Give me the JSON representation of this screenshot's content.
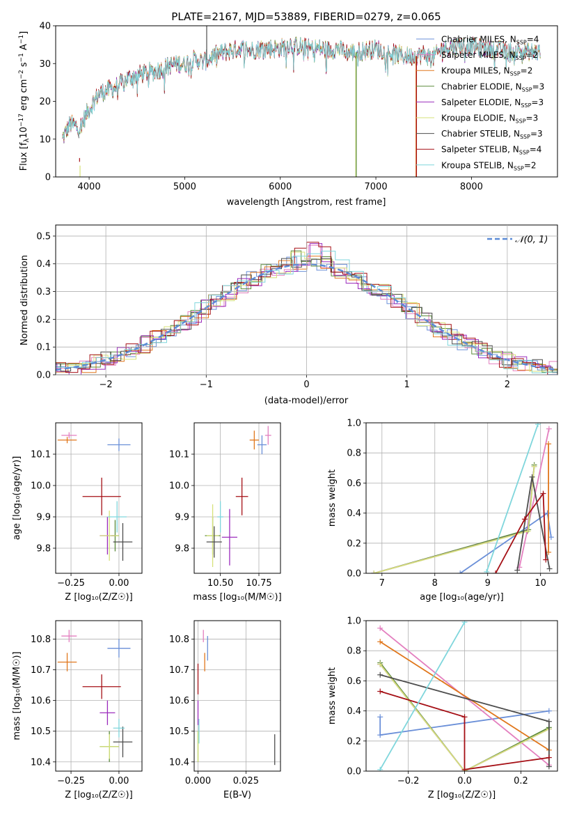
{
  "colors": {
    "Chabrier MILES": "#6a8fd8",
    "Salpeter MILES": "#e37fbf",
    "Kroupa MILES": "#e0771c",
    "Chabrier ELODIE": "#5a8a3a",
    "Salpeter ELODIE": "#9b2bbd",
    "Kroupa ELODIE": "#d6e27a",
    "Chabrier STELIB": "#4d4d4d",
    "Salpeter STELIB": "#a50f15",
    "Kroupa STELIB": "#7fd6dc",
    "normal": "#5b8bd6",
    "grid": "#b0b0b0"
  },
  "chart_data": [
    {
      "type": "line",
      "title": "PLATE=2167, MJD=53889, FIBERID=0279, z=0.065",
      "xlabel": "wavelength [Angstrom, rest frame]",
      "ylabel": "Flux [fλ10⁻¹⁷ erg cm⁻² s⁻¹ A⁻¹]",
      "xlim": [
        3650,
        8900
      ],
      "ylim": [
        0,
        40
      ],
      "xticks": [
        "4000",
        "5000",
        "6000",
        "7000",
        "8000"
      ],
      "yticks": [
        "0",
        "10",
        "20",
        "30",
        "40"
      ],
      "grid": false,
      "legend": "upper right",
      "spectrum_shape": {
        "x": [
          3720,
          3800,
          3900,
          4000,
          4100,
          4200,
          4300,
          4400,
          4500,
          4600,
          4700,
          4800,
          4900,
          5000,
          5100,
          5200,
          5300,
          5400,
          5500,
          5600,
          5700,
          5800,
          5900,
          6000,
          6100,
          6200,
          6300,
          6400,
          6500,
          6600,
          6700,
          6800,
          6900,
          7000,
          7100,
          7200,
          7300,
          7400,
          7500,
          7600,
          7700,
          7800,
          7900,
          8000,
          8100,
          8200,
          8300,
          8400,
          8500,
          8600,
          8700
        ],
        "y": [
          10,
          14,
          13,
          18,
          22,
          23,
          24,
          26,
          27,
          27.5,
          28,
          29,
          30,
          30,
          31,
          30.5,
          32,
          33,
          33.5,
          34,
          33.5,
          34,
          34,
          34,
          35,
          34.5,
          34,
          34,
          33.5,
          34,
          33,
          33,
          33.5,
          34,
          33,
          32.5,
          32,
          32,
          32.5,
          31.5,
          34,
          34.5,
          35,
          34.5,
          34,
          34,
          33.5,
          33,
          33.5,
          33,
          33
        ]
      },
      "series": [
        {
          "name": "Chabrier MILES, NSSP=4",
          "label": "Chabrier MILES, N",
          "sub": "SSP",
          "suffix": "=4"
        },
        {
          "name": "Salpeter MILES, NSSP=2",
          "label": "Salpeter MILES, N",
          "sub": "SSP",
          "suffix": "=2"
        },
        {
          "name": "Kroupa MILES, NSSP=2",
          "label": "Kroupa MILES, N",
          "sub": "SSP",
          "suffix": "=2"
        },
        {
          "name": "Chabrier ELODIE, NSSP=3",
          "label": "Chabrier ELODIE, N",
          "sub": "SSP",
          "suffix": "=3"
        },
        {
          "name": "Salpeter ELODIE, NSSP=3",
          "label": "Salpeter ELODIE, N",
          "sub": "SSP",
          "suffix": "=3"
        },
        {
          "name": "Kroupa ELODIE, NSSP=3",
          "label": "Kroupa ELODIE, N",
          "sub": "SSP",
          "suffix": "=3"
        },
        {
          "name": "Chabrier STELIB, NSSP=3",
          "label": "Chabrier STELIB, N",
          "sub": "SSP",
          "suffix": "=3"
        },
        {
          "name": "Salpeter STELIB, NSSP=4",
          "label": "Salpeter STELIB, N",
          "sub": "SSP",
          "suffix": "=4"
        },
        {
          "name": "Kroupa STELIB, NSSP=2",
          "label": "Kroupa STELIB, N",
          "sub": "SSP",
          "suffix": "=2"
        }
      ]
    },
    {
      "type": "area",
      "xlabel": "(data-model)/error",
      "ylabel": "Normed distribution",
      "xlim": [
        -2.5,
        2.5
      ],
      "ylim": [
        0,
        0.54
      ],
      "xticks": [
        "−2",
        "−1",
        "0",
        "1",
        "2"
      ],
      "yticks": [
        "0.0",
        "0.1",
        "0.2",
        "0.3",
        "0.4",
        "0.5"
      ],
      "grid": true,
      "legend": "upper right",
      "legend_label": "𝒩(0, 1)",
      "histogram": "step histograms of residuals for each of the 9 model fits, approximately following N(0,1)"
    },
    {
      "type": "scatter",
      "xlabel": "Z [log₁₀(Z/Z☉)]",
      "ylabel": "age  [log₁₀(age/yr)]",
      "xlim": [
        -0.33,
        0.12
      ],
      "ylim": [
        9.72,
        10.2
      ],
      "xticks": [
        "−0.25",
        "0.00"
      ],
      "yticks": [
        "9.8",
        "9.9",
        "10.0",
        "10.1"
      ],
      "points": [
        {
          "x": 0.0,
          "y": 10.13,
          "xerr": 0.06,
          "yerr": 0.02
        },
        {
          "x": -0.26,
          "y": 10.16,
          "xerr": 0.04,
          "yerr": 0.01
        },
        {
          "x": -0.27,
          "y": 10.145,
          "xerr": 0.05,
          "yerr": 0.01
        },
        {
          "x": -0.02,
          "y": 9.84,
          "xerr": 0.02,
          "yerr": 0.05
        },
        {
          "x": -0.06,
          "y": 9.84,
          "xerr": 0.04,
          "yerr": 0.06
        },
        {
          "x": -0.05,
          "y": 9.84,
          "xerr": 0.05,
          "yerr": 0.08
        },
        {
          "x": 0.02,
          "y": 9.82,
          "xerr": 0.05,
          "yerr": 0.06
        },
        {
          "x": -0.09,
          "y": 9.965,
          "xerr": 0.1,
          "yerr": 0.06
        },
        {
          "x": -0.01,
          "y": 9.9,
          "xerr": 0.05,
          "yerr": 0.05
        }
      ]
    },
    {
      "type": "scatter",
      "xlabel": "mass [log₁₀(M/M☉)]",
      "ylabel": "",
      "xlim": [
        10.33,
        10.89
      ],
      "ylim": [
        9.72,
        10.2
      ],
      "xticks": [
        "10.50",
        "10.75"
      ],
      "yticks": [
        "9.8",
        "9.9",
        "10.0",
        "10.1"
      ],
      "points": [
        {
          "x": 10.77,
          "y": 10.13,
          "xerr": 0.03,
          "yerr": 0.03
        },
        {
          "x": 10.81,
          "y": 10.16,
          "xerr": 0.02,
          "yerr": 0.03
        },
        {
          "x": 10.72,
          "y": 10.145,
          "xerr": 0.03,
          "yerr": 0.03
        },
        {
          "x": 10.45,
          "y": 9.84,
          "xerr": 0.05,
          "yerr": 0.06
        },
        {
          "x": 10.56,
          "y": 9.835,
          "xerr": 0.05,
          "yerr": 0.09
        },
        {
          "x": 10.45,
          "y": 9.84,
          "xerr": 0.04,
          "yerr": 0.1
        },
        {
          "x": 10.46,
          "y": 9.82,
          "xerr": 0.05,
          "yerr": 0.05
        },
        {
          "x": 10.64,
          "y": 9.965,
          "xerr": 0.04,
          "yerr": 0.06
        },
        {
          "x": 10.5,
          "y": 9.9,
          "xerr": 0.02,
          "yerr": 0.05
        }
      ]
    },
    {
      "type": "line",
      "xlabel": "age  [log₁₀(age/yr)]",
      "ylabel": "mass weight",
      "xlim": [
        6.7,
        10.32
      ],
      "ylim": [
        0,
        1.0
      ],
      "xticks": [
        "7",
        "8",
        "9",
        "10"
      ],
      "yticks": [
        "0.0",
        "0.2",
        "0.4",
        "0.6",
        "0.8",
        "1.0"
      ],
      "grid": true,
      "series": [
        {
          "x": [
            8.48,
            10.13,
            10.2
          ],
          "y": [
            0.0,
            0.4,
            0.24
          ]
        },
        {
          "x": [
            9.6,
            10.16
          ],
          "y": [
            0.04,
            0.96
          ]
        },
        {
          "x": [
            10.15,
            10.15
          ],
          "y": [
            0.14,
            0.86
          ]
        },
        {
          "x": [
            6.85,
            9.77,
            9.88
          ],
          "y": [
            0.0,
            0.29,
            0.72
          ]
        },
        {
          "x": [
            6.85,
            9.75,
            9.88
          ],
          "y": [
            0.0,
            0.28,
            0.71
          ]
        },
        {
          "x": [
            6.85,
            9.76,
            9.88
          ],
          "y": [
            0.0,
            0.28,
            0.71
          ]
        },
        {
          "x": [
            9.56,
            9.84,
            10.17
          ],
          "y": [
            0.02,
            0.64,
            0.03
          ]
        },
        {
          "x": [
            9.15,
            9.7,
            10.05,
            10.1
          ],
          "y": [
            0.0,
            0.36,
            0.53,
            0.09
          ]
        },
        {
          "x": [
            8.98,
            9.95
          ],
          "y": [
            0.01,
            0.99
          ]
        }
      ]
    },
    {
      "type": "scatter",
      "xlabel": "Z [log₁₀(Z/Z☉)]",
      "ylabel": "mass [log₁₀(M/M☉)]",
      "xlim": [
        -0.33,
        0.12
      ],
      "ylim": [
        10.37,
        10.86
      ],
      "xticks": [
        "−0.25",
        "0.00"
      ],
      "yticks": [
        "10.4",
        "10.5",
        "10.6",
        "10.7",
        "10.8"
      ],
      "points": [
        {
          "x": 0.0,
          "y": 10.77,
          "xerr": 0.06,
          "yerr": 0.03
        },
        {
          "x": -0.26,
          "y": 10.81,
          "xerr": 0.04,
          "yerr": 0.02
        },
        {
          "x": -0.27,
          "y": 10.725,
          "xerr": 0.05,
          "yerr": 0.03
        },
        {
          "x": -0.05,
          "y": 10.45,
          "xerr": 0.05,
          "yerr": 0.05
        },
        {
          "x": -0.06,
          "y": 10.56,
          "xerr": 0.04,
          "yerr": 0.04
        },
        {
          "x": -0.05,
          "y": 10.45,
          "xerr": 0.05,
          "yerr": 0.04
        },
        {
          "x": 0.02,
          "y": 10.465,
          "xerr": 0.05,
          "yerr": 0.05
        },
        {
          "x": -0.09,
          "y": 10.645,
          "xerr": 0.1,
          "yerr": 0.04
        },
        {
          "x": 0.0,
          "y": 10.51,
          "xerr": 0.03,
          "yerr": 0.03
        }
      ]
    },
    {
      "type": "scatter",
      "xlabel": "E(B-V)",
      "ylabel": "",
      "xlim": [
        -0.002,
        0.043
      ],
      "ylim": [
        10.37,
        10.86
      ],
      "xticks": [
        "0.000",
        "0.025"
      ],
      "yticks": [
        "10.4",
        "10.5",
        "10.6",
        "10.7",
        "10.8"
      ],
      "points": [
        {
          "x": 0.005,
          "y": 10.77,
          "xerr": 0,
          "yerr": 0.04
        },
        {
          "x": 0.0028,
          "y": 10.81,
          "xerr": 0,
          "yerr": 0.02
        },
        {
          "x": 0.0035,
          "y": 10.725,
          "xerr": 0,
          "yerr": 0.03
        },
        {
          "x": 0.0,
          "y": 10.45,
          "xerr": 0,
          "yerr": 0.05
        },
        {
          "x": 0.0,
          "y": 10.56,
          "xerr": 0,
          "yerr": 0.04
        },
        {
          "x": 0.0,
          "y": 10.45,
          "xerr": 0,
          "yerr": 0.05
        },
        {
          "x": 0.04,
          "y": 10.44,
          "xerr": 0,
          "yerr": 0.05
        },
        {
          "x": 0.0,
          "y": 10.67,
          "xerr": 0,
          "yerr": 0.05
        },
        {
          "x": 0.0005,
          "y": 10.5,
          "xerr": 0,
          "yerr": 0.04
        }
      ]
    },
    {
      "type": "line",
      "xlabel": "Z [log₁₀(Z/Z☉)]",
      "ylabel": "mass weight",
      "xlim": [
        -0.35,
        0.33
      ],
      "ylim": [
        0,
        1.0
      ],
      "xticks": [
        "−0.2",
        "0.0",
        "0.2"
      ],
      "yticks": [
        "0.0",
        "0.2",
        "0.4",
        "0.6",
        "0.8",
        "1.0"
      ],
      "grid": true,
      "series": [
        {
          "x": [
            -0.3,
            -0.3,
            0.3
          ],
          "y": [
            0.36,
            0.24,
            0.4
          ]
        },
        {
          "x": [
            -0.3,
            0.3
          ],
          "y": [
            0.95,
            0.04
          ]
        },
        {
          "x": [
            -0.3,
            0.3
          ],
          "y": [
            0.86,
            0.14
          ]
        },
        {
          "x": [
            -0.3,
            0.0,
            0.3
          ],
          "y": [
            0.72,
            0.0,
            0.29
          ]
        },
        {
          "x": [
            -0.3,
            0.0,
            0.3
          ],
          "y": [
            0.71,
            0.0,
            0.28
          ]
        },
        {
          "x": [
            -0.3,
            0.0,
            0.3
          ],
          "y": [
            0.71,
            0.0,
            0.28
          ]
        },
        {
          "x": [
            -0.3,
            0.3,
            0.3
          ],
          "y": [
            0.64,
            0.33,
            0.03
          ]
        },
        {
          "x": [
            -0.3,
            0.0,
            0.0,
            0.3
          ],
          "y": [
            0.53,
            0.36,
            0.01,
            0.09
          ]
        },
        {
          "x": [
            -0.3,
            0.0
          ],
          "y": [
            0.01,
            0.99
          ]
        }
      ]
    }
  ]
}
